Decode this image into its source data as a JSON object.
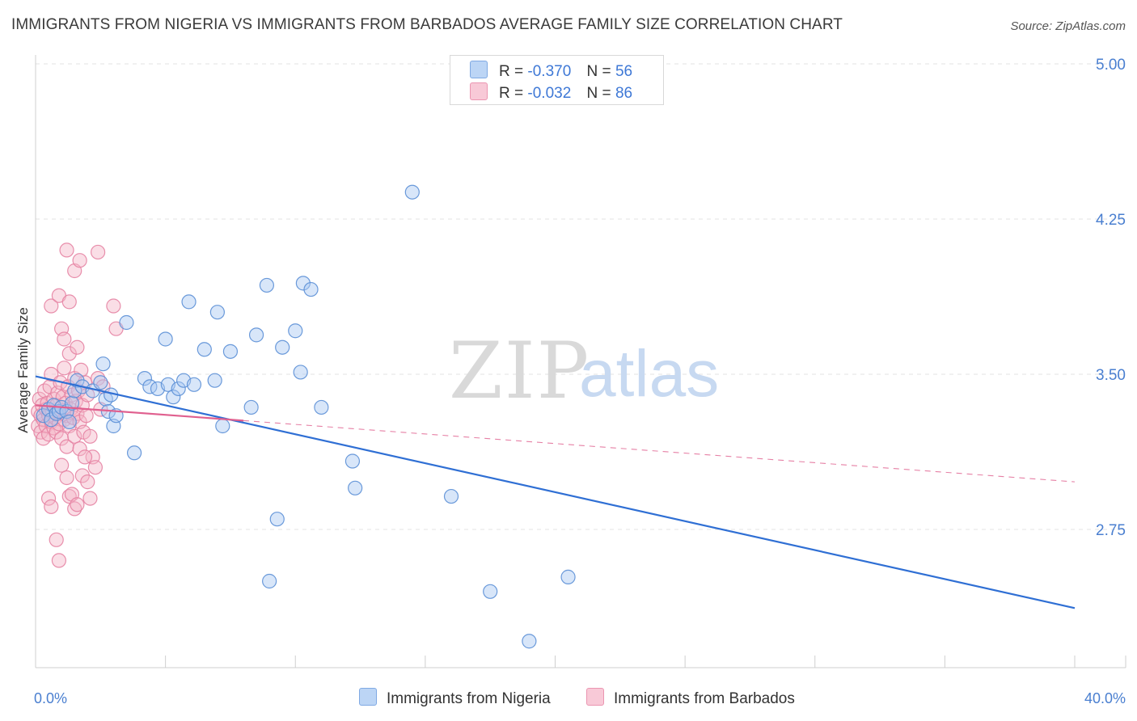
{
  "header": {
    "title": "IMMIGRANTS FROM NIGERIA VS IMMIGRANTS FROM BARBADOS AVERAGE FAMILY SIZE CORRELATION CHART",
    "source": "Source: ZipAtlas.com"
  },
  "watermark": {
    "zip": "ZIP",
    "atlas": "atlas"
  },
  "legend": {
    "rows": [
      {
        "r_label": "R =",
        "r_value": "-0.370",
        "n_label": "N =",
        "n_value": "56"
      },
      {
        "r_label": "R =",
        "r_value": "-0.032",
        "n_label": "N =",
        "n_value": "86"
      }
    ]
  },
  "bottom_legend": {
    "series1": "Immigrants from Nigeria",
    "series2": "Immigrants from Barbados"
  },
  "colors": {
    "nigeria_fill": "#a9c8f2",
    "nigeria_stroke": "#5b8fd6",
    "nigeria_line": "#2f6fd4",
    "barbados_fill": "#f5b5c8",
    "barbados_stroke": "#e583a3",
    "barbados_line": "#e0608f",
    "tick_text": "#4a7fd0"
  },
  "chart_data": {
    "type": "scatter",
    "title": "IMMIGRANTS FROM NIGERIA VS IMMIGRANTS FROM BARBADOS AVERAGE FAMILY SIZE CORRELATION CHART",
    "xlabel": "",
    "ylabel": "Average Family Size",
    "xlim": [
      0,
      40
    ],
    "ylim": [
      2.0,
      5.1
    ],
    "x_tick_labels": [
      "0.0%",
      "40.0%"
    ],
    "y_ticks": [
      2.75,
      3.5,
      4.25,
      5.0
    ],
    "y_tick_labels": [
      "2.75",
      "3.50",
      "4.25",
      "5.00"
    ],
    "grid": true,
    "series": [
      {
        "name": "Immigrants from Nigeria",
        "r": -0.37,
        "n": 56,
        "trend": {
          "x": [
            0,
            40
          ],
          "y": [
            3.49,
            2.37
          ],
          "style": "solid"
        },
        "points": [
          [
            0.3,
            3.3
          ],
          [
            0.5,
            3.33
          ],
          [
            0.6,
            3.28
          ],
          [
            0.7,
            3.35
          ],
          [
            0.8,
            3.31
          ],
          [
            0.9,
            3.32
          ],
          [
            1.0,
            3.34
          ],
          [
            1.2,
            3.32
          ],
          [
            1.3,
            3.27
          ],
          [
            1.4,
            3.36
          ],
          [
            1.5,
            3.42
          ],
          [
            1.6,
            3.47
          ],
          [
            1.8,
            3.44
          ],
          [
            2.2,
            3.42
          ],
          [
            2.5,
            3.46
          ],
          [
            2.6,
            3.55
          ],
          [
            2.7,
            3.38
          ],
          [
            2.8,
            3.32
          ],
          [
            2.9,
            3.4
          ],
          [
            3.0,
            3.25
          ],
          [
            3.1,
            3.3
          ],
          [
            3.5,
            3.75
          ],
          [
            3.8,
            3.12
          ],
          [
            4.2,
            3.48
          ],
          [
            4.4,
            3.44
          ],
          [
            4.7,
            3.43
          ],
          [
            5.0,
            3.67
          ],
          [
            5.1,
            3.45
          ],
          [
            5.3,
            3.39
          ],
          [
            5.5,
            3.43
          ],
          [
            5.7,
            3.47
          ],
          [
            5.9,
            3.85
          ],
          [
            6.1,
            3.45
          ],
          [
            6.5,
            3.62
          ],
          [
            6.9,
            3.47
          ],
          [
            7.0,
            3.8
          ],
          [
            7.2,
            3.25
          ],
          [
            7.5,
            3.61
          ],
          [
            8.3,
            3.34
          ],
          [
            8.5,
            3.69
          ],
          [
            8.9,
            3.93
          ],
          [
            9.0,
            2.5
          ],
          [
            9.3,
            2.8
          ],
          [
            9.5,
            3.63
          ],
          [
            10.0,
            3.71
          ],
          [
            10.2,
            3.51
          ],
          [
            10.3,
            3.94
          ],
          [
            10.6,
            3.91
          ],
          [
            11.0,
            3.34
          ],
          [
            12.2,
            3.08
          ],
          [
            12.3,
            2.95
          ],
          [
            14.5,
            4.38
          ],
          [
            16.0,
            2.91
          ],
          [
            17.5,
            2.45
          ],
          [
            19.0,
            2.21
          ],
          [
            20.5,
            2.52
          ]
        ]
      },
      {
        "name": "Immigrants from Barbados",
        "r": -0.032,
        "n": 86,
        "trend": {
          "x": [
            0,
            40
          ],
          "y": [
            3.35,
            2.98
          ],
          "solid_until_x": 8.0
        },
        "points": [
          [
            0.1,
            3.32
          ],
          [
            0.1,
            3.25
          ],
          [
            0.15,
            3.38
          ],
          [
            0.2,
            3.3
          ],
          [
            0.2,
            3.22
          ],
          [
            0.25,
            3.35
          ],
          [
            0.3,
            3.28
          ],
          [
            0.3,
            3.19
          ],
          [
            0.35,
            3.42
          ],
          [
            0.4,
            3.33
          ],
          [
            0.4,
            3.25
          ],
          [
            0.45,
            3.36
          ],
          [
            0.5,
            3.3
          ],
          [
            0.5,
            3.21
          ],
          [
            0.55,
            3.44
          ],
          [
            0.6,
            3.27
          ],
          [
            0.6,
            3.5
          ],
          [
            0.65,
            3.32
          ],
          [
            0.7,
            3.24
          ],
          [
            0.7,
            3.38
          ],
          [
            0.75,
            3.29
          ],
          [
            0.8,
            3.35
          ],
          [
            0.8,
            3.22
          ],
          [
            0.85,
            3.41
          ],
          [
            0.9,
            3.31
          ],
          [
            0.9,
            3.26
          ],
          [
            0.95,
            3.46
          ],
          [
            1.0,
            3.34
          ],
          [
            1.0,
            3.19
          ],
          [
            1.05,
            3.39
          ],
          [
            1.1,
            3.28
          ],
          [
            1.1,
            3.53
          ],
          [
            1.15,
            3.36
          ],
          [
            1.2,
            3.3
          ],
          [
            1.2,
            3.15
          ],
          [
            1.25,
            3.44
          ],
          [
            1.3,
            3.25
          ],
          [
            1.3,
            3.6
          ],
          [
            1.35,
            3.33
          ],
          [
            1.4,
            3.4
          ],
          [
            1.45,
            3.29
          ],
          [
            1.5,
            3.48
          ],
          [
            1.5,
            3.2
          ],
          [
            1.55,
            3.37
          ],
          [
            1.6,
            3.31
          ],
          [
            1.6,
            3.63
          ],
          [
            1.65,
            3.42
          ],
          [
            1.7,
            3.27
          ],
          [
            1.75,
            3.52
          ],
          [
            1.8,
            3.35
          ],
          [
            1.85,
            3.22
          ],
          [
            1.9,
            3.46
          ],
          [
            1.95,
            3.3
          ],
          [
            2.0,
            3.4
          ],
          [
            2.1,
            3.2
          ],
          [
            2.2,
            3.1
          ],
          [
            2.3,
            3.05
          ],
          [
            2.4,
            3.48
          ],
          [
            2.5,
            3.33
          ],
          [
            2.6,
            3.44
          ],
          [
            0.5,
            2.9
          ],
          [
            0.6,
            2.86
          ],
          [
            0.8,
            2.7
          ],
          [
            0.9,
            2.6
          ],
          [
            1.0,
            3.06
          ],
          [
            1.2,
            3.0
          ],
          [
            1.3,
            2.91
          ],
          [
            1.4,
            2.92
          ],
          [
            1.5,
            2.85
          ],
          [
            1.6,
            2.87
          ],
          [
            1.7,
            3.14
          ],
          [
            1.8,
            3.01
          ],
          [
            1.9,
            3.1
          ],
          [
            2.0,
            2.98
          ],
          [
            2.1,
            2.9
          ],
          [
            0.6,
            3.83
          ],
          [
            0.9,
            3.88
          ],
          [
            1.0,
            3.72
          ],
          [
            1.1,
            3.67
          ],
          [
            1.3,
            3.85
          ],
          [
            1.5,
            4.0
          ],
          [
            1.7,
            4.05
          ],
          [
            2.4,
            4.09
          ],
          [
            1.2,
            4.1
          ],
          [
            3.0,
            3.83
          ],
          [
            3.1,
            3.72
          ]
        ]
      }
    ]
  }
}
